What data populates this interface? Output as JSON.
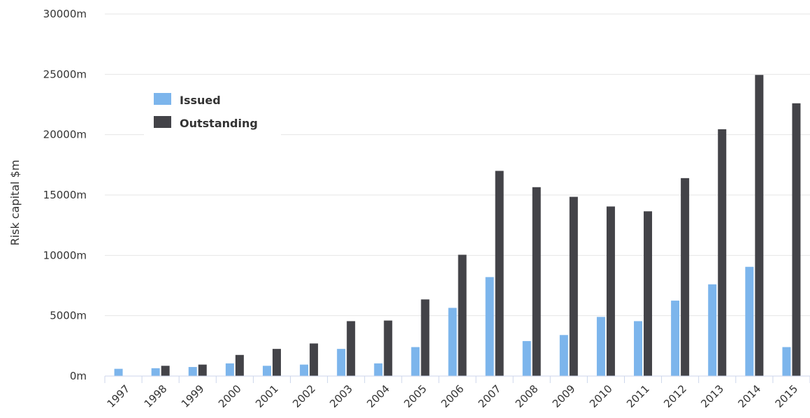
{
  "chart_data": {
    "type": "bar",
    "categories": [
      "1997",
      "1998",
      "1999",
      "2000",
      "2001",
      "2002",
      "2003",
      "2004",
      "2005",
      "2006",
      "2007",
      "2008",
      "2009",
      "2010",
      "2011",
      "2012",
      "2013",
      "2014",
      "2015"
    ],
    "series": [
      {
        "name": "Issued",
        "color": "#7cb5ec",
        "values": [
          600,
          650,
          750,
          1050,
          850,
          950,
          2250,
          1050,
          2400,
          5650,
          8200,
          2900,
          3400,
          4900,
          4550,
          6250,
          7600,
          9050,
          2400
        ]
      },
      {
        "name": "Outstanding",
        "color": "#434348",
        "values": [
          0,
          850,
          950,
          1750,
          2250,
          2700,
          4550,
          4600,
          6350,
          10050,
          17000,
          15650,
          14850,
          14050,
          13650,
          16400,
          20450,
          24950,
          22600
        ]
      }
    ],
    "title": "",
    "xlabel": "",
    "ylabel": "Risk capital $m",
    "ylim": [
      0,
      30000
    ],
    "yticks": [
      "0m",
      "5000m",
      "10000m",
      "15000m",
      "20000m",
      "25000m",
      "30000m"
    ],
    "ytick_values": [
      0,
      5000,
      10000,
      15000,
      20000,
      25000,
      30000
    ],
    "grid": true,
    "legend_position": "top-left"
  }
}
